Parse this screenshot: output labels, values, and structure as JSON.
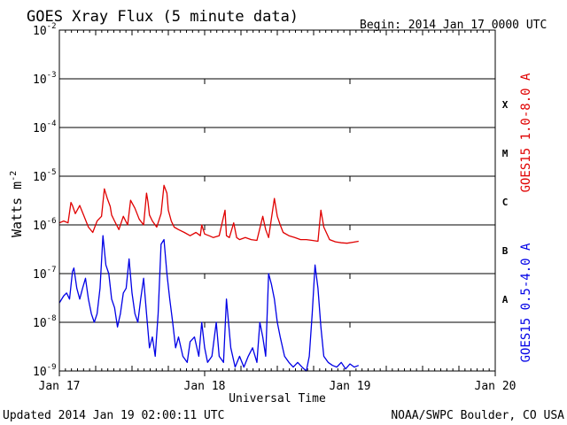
{
  "chart_data": {
    "type": "line",
    "title": "GOES Xray Flux (5 minute data)",
    "begin_label": "Begin:  2014 Jan 17 0000 UTC",
    "xlabel": "Universal Time",
    "ylabel_base": "Watts m",
    "ylabel_exp": "-2",
    "y_scale": "log",
    "ylim": [
      1e-09,
      0.01
    ],
    "y_ticks": [
      {
        "value": 0.01,
        "base": "10",
        "exp": "-2"
      },
      {
        "value": 0.001,
        "base": "10",
        "exp": "-3"
      },
      {
        "value": 0.0001,
        "base": "10",
        "exp": "-4"
      },
      {
        "value": 1e-05,
        "base": "10",
        "exp": "-5"
      },
      {
        "value": 1e-06,
        "base": "10",
        "exp": "-6"
      },
      {
        "value": 1e-07,
        "base": "10",
        "exp": "-7"
      },
      {
        "value": 1e-08,
        "base": "10",
        "exp": "-8"
      },
      {
        "value": 1e-09,
        "base": "10",
        "exp": "-9"
      }
    ],
    "x_unit": "days since Jan 17 0000 UTC",
    "xlim": [
      0,
      3
    ],
    "x_ticks": [
      {
        "value": 0,
        "label": "Jan 17"
      },
      {
        "value": 1,
        "label": "Jan 18"
      },
      {
        "value": 2,
        "label": "Jan 19"
      },
      {
        "value": 3,
        "label": "Jan 20"
      }
    ],
    "flare_classes": [
      {
        "label": "X",
        "value": 0.0003
      },
      {
        "label": "M",
        "value": 3e-05
      },
      {
        "label": "C",
        "value": 3e-06
      },
      {
        "label": "B",
        "value": 3e-07
      },
      {
        "label": "A",
        "value": 3e-08
      }
    ],
    "grid": true,
    "series": [
      {
        "name": "GOES15 1.0-8.0 A",
        "color": "#e00000",
        "x": [
          0.0,
          0.03,
          0.06,
          0.08,
          0.09,
          0.11,
          0.14,
          0.17,
          0.2,
          0.23,
          0.26,
          0.29,
          0.31,
          0.33,
          0.35,
          0.36,
          0.38,
          0.41,
          0.44,
          0.47,
          0.49,
          0.52,
          0.55,
          0.58,
          0.6,
          0.61,
          0.62,
          0.64,
          0.67,
          0.7,
          0.72,
          0.74,
          0.75,
          0.77,
          0.79,
          0.82,
          0.86,
          0.9,
          0.94,
          0.97,
          0.98,
          1.0,
          1.03,
          1.06,
          1.1,
          1.14,
          1.15,
          1.17,
          1.2,
          1.22,
          1.24,
          1.28,
          1.32,
          1.36,
          1.4,
          1.42,
          1.44,
          1.48,
          1.5,
          1.52,
          1.54,
          1.58,
          1.62,
          1.66,
          1.7,
          1.74,
          1.78,
          1.8,
          1.82,
          1.86,
          1.9,
          1.94,
          1.98,
          2.02,
          2.06
        ],
        "y": [
          1.1e-06,
          1.2e-06,
          1.1e-06,
          2.9e-06,
          2.5e-06,
          1.7e-06,
          2.5e-06,
          1.5e-06,
          9e-07,
          7e-07,
          1.2e-06,
          1.5e-06,
          5.5e-06,
          3.5e-06,
          2.4e-06,
          1.6e-06,
          1.2e-06,
          8e-07,
          1.5e-06,
          1e-06,
          3.2e-06,
          2.2e-06,
          1.3e-06,
          1e-06,
          4.5e-06,
          3e-06,
          1.6e-06,
          1.2e-06,
          9e-07,
          1.7e-06,
          6.5e-06,
          4.5e-06,
          2e-06,
          1.2e-06,
          9e-07,
          8e-07,
          7e-07,
          6e-07,
          7e-07,
          6e-07,
          1e-06,
          6.5e-07,
          6e-07,
          5.5e-07,
          6e-07,
          2e-06,
          6e-07,
          5.5e-07,
          1.1e-06,
          5.5e-07,
          5e-07,
          5.5e-07,
          5e-07,
          4.8e-07,
          1.5e-06,
          8e-07,
          5.5e-07,
          3.5e-06,
          1.5e-06,
          1e-06,
          7e-07,
          6e-07,
          5.5e-07,
          5e-07,
          5e-07,
          4.8e-07,
          4.6e-07,
          2e-06,
          9e-07,
          5e-07,
          4.5e-07,
          4.3e-07,
          4.2e-07,
          4.4e-07,
          4.6e-07
        ]
      },
      {
        "name": "GOES15 0.5-4.0 A",
        "color": "#0000e6",
        "x": [
          0.0,
          0.03,
          0.05,
          0.07,
          0.09,
          0.1,
          0.12,
          0.14,
          0.16,
          0.18,
          0.2,
          0.22,
          0.24,
          0.26,
          0.28,
          0.3,
          0.32,
          0.34,
          0.36,
          0.38,
          0.4,
          0.42,
          0.44,
          0.46,
          0.48,
          0.5,
          0.52,
          0.54,
          0.56,
          0.58,
          0.6,
          0.62,
          0.64,
          0.66,
          0.68,
          0.7,
          0.72,
          0.74,
          0.76,
          0.78,
          0.8,
          0.82,
          0.85,
          0.88,
          0.9,
          0.93,
          0.96,
          0.98,
          1.0,
          1.02,
          1.05,
          1.08,
          1.1,
          1.13,
          1.15,
          1.18,
          1.21,
          1.24,
          1.27,
          1.3,
          1.33,
          1.36,
          1.38,
          1.4,
          1.42,
          1.44,
          1.46,
          1.48,
          1.5,
          1.52,
          1.55,
          1.58,
          1.61,
          1.64,
          1.67,
          1.7,
          1.72,
          1.74,
          1.76,
          1.78,
          1.8,
          1.82,
          1.85,
          1.88,
          1.91,
          1.94,
          1.97,
          2.0,
          2.03,
          2.06
        ],
        "y": [
          2.5e-08,
          3.5e-08,
          4e-08,
          3e-08,
          1.1e-07,
          1.3e-07,
          5e-08,
          3e-08,
          5e-08,
          8e-08,
          3e-08,
          1.5e-08,
          1e-08,
          1.5e-08,
          5e-08,
          6e-07,
          1.5e-07,
          1e-07,
          3e-08,
          2e-08,
          8e-09,
          1.5e-08,
          4e-08,
          5e-08,
          2e-07,
          4e-08,
          1.5e-08,
          1e-08,
          3e-08,
          8e-08,
          1.5e-08,
          3e-09,
          5e-09,
          2e-09,
          1.5e-08,
          4e-07,
          5e-07,
          1e-07,
          3e-08,
          1e-08,
          3e-09,
          5e-09,
          2e-09,
          1.5e-09,
          4e-09,
          5e-09,
          2e-09,
          1e-08,
          3e-09,
          1.5e-09,
          2e-09,
          1e-08,
          2e-09,
          1.5e-09,
          3e-08,
          3e-09,
          1.2e-09,
          2e-09,
          1.2e-09,
          2e-09,
          3e-09,
          1.5e-09,
          1e-08,
          5e-09,
          2e-09,
          1e-07,
          6e-08,
          3e-08,
          1e-08,
          5e-09,
          2e-09,
          1.5e-09,
          1.2e-09,
          1.5e-09,
          1.2e-09,
          1e-09,
          2e-09,
          1.5e-08,
          1.5e-07,
          5e-08,
          8e-09,
          2e-09,
          1.5e-09,
          1.3e-09,
          1.2e-09,
          1.5e-09,
          1.1e-09,
          1.4e-09,
          1.2e-09,
          1.3e-09
        ]
      }
    ]
  },
  "footer": {
    "updated": "Updated 2014 Jan 19 02:00:11 UTC",
    "credit": "NOAA/SWPC Boulder, CO USA"
  }
}
